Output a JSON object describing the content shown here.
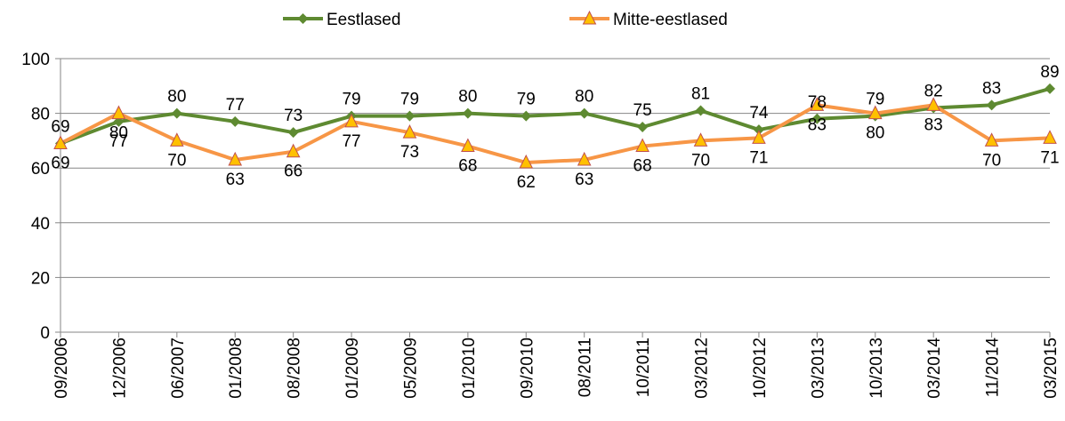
{
  "chart_data": {
    "type": "line",
    "title": "",
    "xlabel": "",
    "ylabel": "",
    "ylim": [
      0,
      100
    ],
    "yticks": [
      0,
      20,
      40,
      60,
      80,
      100
    ],
    "grid": "horizontal",
    "legend_position": "top",
    "categories": [
      "09/2006",
      "12/2006",
      "06/2007",
      "01/2008",
      "08/2008",
      "01/2009",
      "05/2009",
      "01/2010",
      "09/2010",
      "08/2011",
      "10/2011",
      "03/2012",
      "10/2012",
      "03/2013",
      "10/2013",
      "03/2014",
      "11/2014",
      "03/2015"
    ],
    "series": [
      {
        "name": "Eestlased",
        "color": "#5e8a31",
        "marker": "diamond",
        "values": [
          69,
          77,
          80,
          77,
          73,
          79,
          79,
          80,
          79,
          80,
          75,
          81,
          74,
          78,
          79,
          82,
          83,
          89
        ],
        "label_pos": [
          "below",
          "below",
          "above",
          "above",
          "above",
          "above",
          "above",
          "above",
          "above",
          "above",
          "above",
          "above",
          "above",
          "above",
          "above",
          "above",
          "above",
          "above"
        ]
      },
      {
        "name": "Mitte-eestlased",
        "color": "#f79646",
        "marker_fill": "#ffc000",
        "marker": "triangle",
        "values": [
          69,
          80,
          70,
          63,
          66,
          77,
          73,
          68,
          62,
          63,
          68,
          70,
          71,
          83,
          80,
          83,
          70,
          71
        ],
        "label_pos": [
          "above",
          "below",
          "below",
          "below",
          "below",
          "below",
          "below",
          "below",
          "below",
          "below",
          "below",
          "below",
          "below",
          "below",
          "below",
          "below",
          "below",
          "below"
        ]
      }
    ]
  }
}
